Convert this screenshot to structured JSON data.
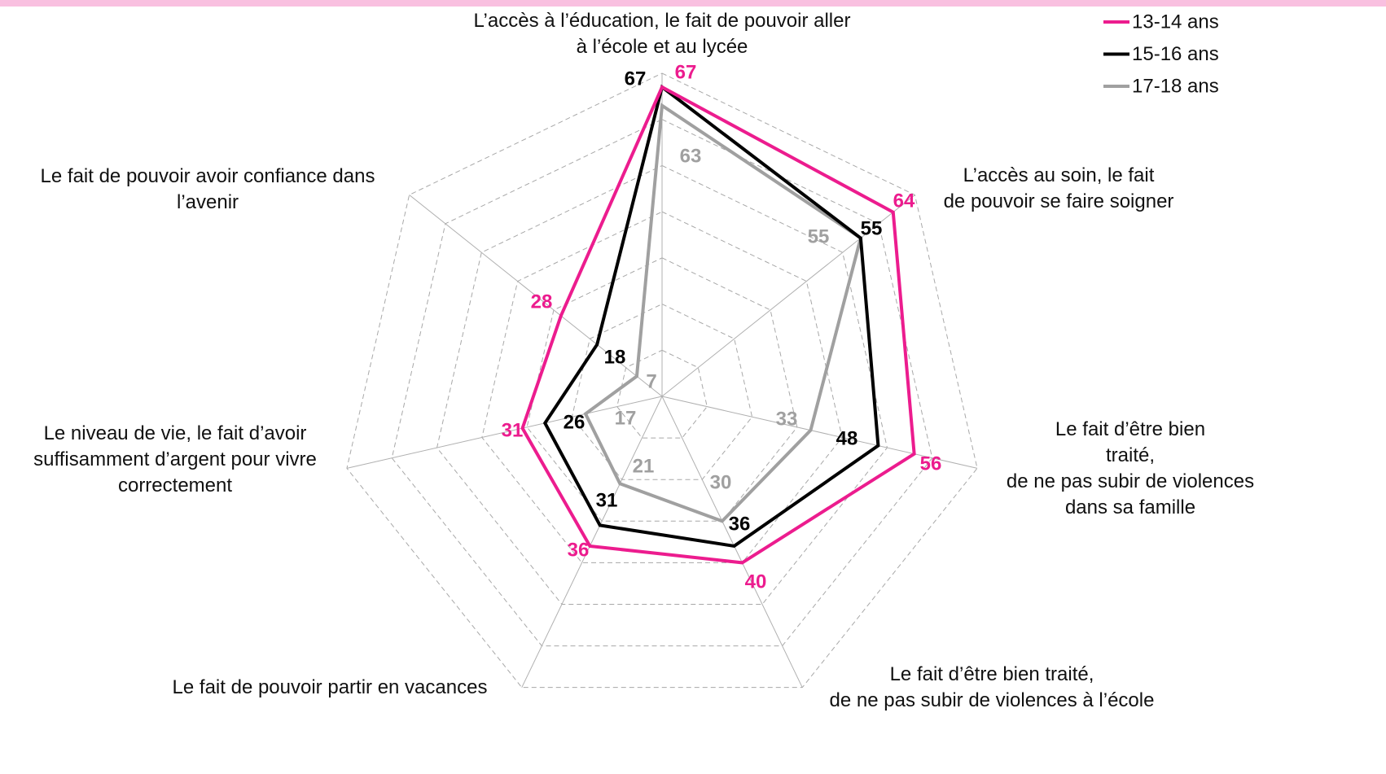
{
  "chart_data": {
    "type": "radar",
    "categories": [
      "L’accès à l’éducation, le fait de pouvoir aller\nà l’école et au lycée",
      "L’accès au soin, le fait\nde pouvoir se faire soigner",
      "Le fait d’être bien\ntraité,\nde ne pas subir de violences\ndans sa famille",
      "Le fait d’être bien traité,\nde ne pas subir de violences à l’école",
      "Le fait de pouvoir partir en vacances",
      "Le niveau de vie, le fait d’avoir\nsuffisamment d’argent pour vivre\ncorrectement",
      "Le fait de pouvoir avoir confiance dans\nl’avenir"
    ],
    "series": [
      {
        "name": "13-14 ans",
        "color": "#ec1c8e",
        "values": [
          67,
          64,
          56,
          40,
          36,
          31,
          28
        ]
      },
      {
        "name": "15-16 ans",
        "color": "#000000",
        "values": [
          67,
          55,
          48,
          36,
          31,
          26,
          18
        ]
      },
      {
        "name": "17-18 ans",
        "color": "#a0a0a0",
        "values": [
          63,
          55,
          33,
          30,
          21,
          17,
          7
        ]
      }
    ],
    "ylim": [
      0,
      70
    ],
    "yticks": [
      10,
      20,
      30,
      40,
      50,
      60,
      70
    ],
    "grid": true,
    "legend": "top-right"
  }
}
